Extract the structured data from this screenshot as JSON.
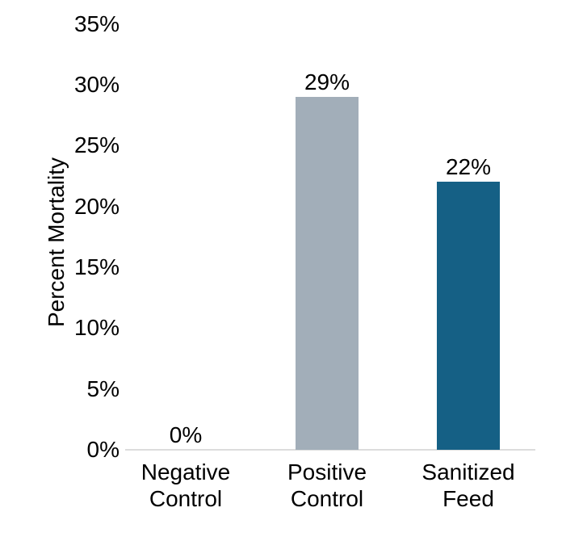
{
  "chart_data": {
    "type": "bar",
    "categories": [
      "Negative Control",
      "Positive Control",
      "Sanitized Feed"
    ],
    "values": [
      0,
      29,
      22
    ],
    "value_labels": [
      "0%",
      "29%",
      "22%"
    ],
    "ylabel": "Percent Mortality",
    "xlabel": "",
    "ylim": [
      0,
      35
    ],
    "ytick_step": 5,
    "ytick_labels": [
      "0%",
      "5%",
      "10%",
      "15%",
      "20%",
      "25%",
      "30%",
      "35%"
    ],
    "grid": false,
    "legend": "none",
    "bar_colors": [
      null,
      "#a2aeb9",
      "#156085"
    ],
    "axis_line_color": "#dcdcdc",
    "text_color": "#000000",
    "background_color": "#ffffff"
  }
}
